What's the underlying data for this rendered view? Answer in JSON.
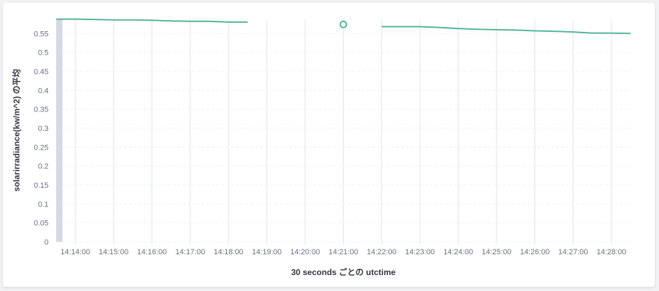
{
  "chart_data": {
    "type": "line",
    "xlabel": "30 seconds ごとの utctime",
    "ylabel": "solarirradiance(kw/m^2) の平均",
    "ylim": [
      0,
      0.6
    ],
    "y_ticks": [
      "0",
      "0.05",
      "0.1",
      "0.15",
      "0.2",
      "0.25",
      "0.3",
      "0.35",
      "0.4",
      "0.45",
      "0.5",
      "0.55"
    ],
    "x_ticks": [
      "14:14:00",
      "14:15:00",
      "14:16:00",
      "14:17:00",
      "14:18:00",
      "14:19:00",
      "14:20:00",
      "14:21:00",
      "14:22:00",
      "14:23:00",
      "14:24:00",
      "14:25:00",
      "14:26:00",
      "14:27:00",
      "14:28:00"
    ],
    "xlim": [
      "14:13:30",
      "14:28:30"
    ],
    "grid": true,
    "line_color": "#54b399",
    "series": [
      {
        "x": [
          "14:13:30",
          "14:14:00",
          "14:14:30",
          "14:15:00",
          "14:15:30",
          "14:16:00",
          "14:16:30",
          "14:17:00",
          "14:17:30",
          "14:18:00",
          "14:18:30",
          "14:19:00",
          "14:19:30",
          "14:20:00",
          "14:20:30",
          "14:21:00",
          "14:21:30",
          "14:22:00",
          "14:22:30",
          "14:23:00",
          "14:23:30",
          "14:24:00",
          "14:24:30",
          "14:25:00",
          "14:25:30",
          "14:26:00",
          "14:26:30",
          "14:27:00",
          "14:27:30",
          "14:28:00",
          "14:28:30"
        ],
        "values": [
          0.588,
          0.588,
          0.587,
          0.586,
          0.586,
          0.585,
          0.583,
          0.582,
          0.582,
          0.58,
          0.58,
          null,
          null,
          null,
          null,
          0.574,
          null,
          0.568,
          0.568,
          0.568,
          0.566,
          0.563,
          0.561,
          0.56,
          0.559,
          0.557,
          0.556,
          0.554,
          0.551,
          0.551,
          0.55
        ]
      }
    ]
  }
}
